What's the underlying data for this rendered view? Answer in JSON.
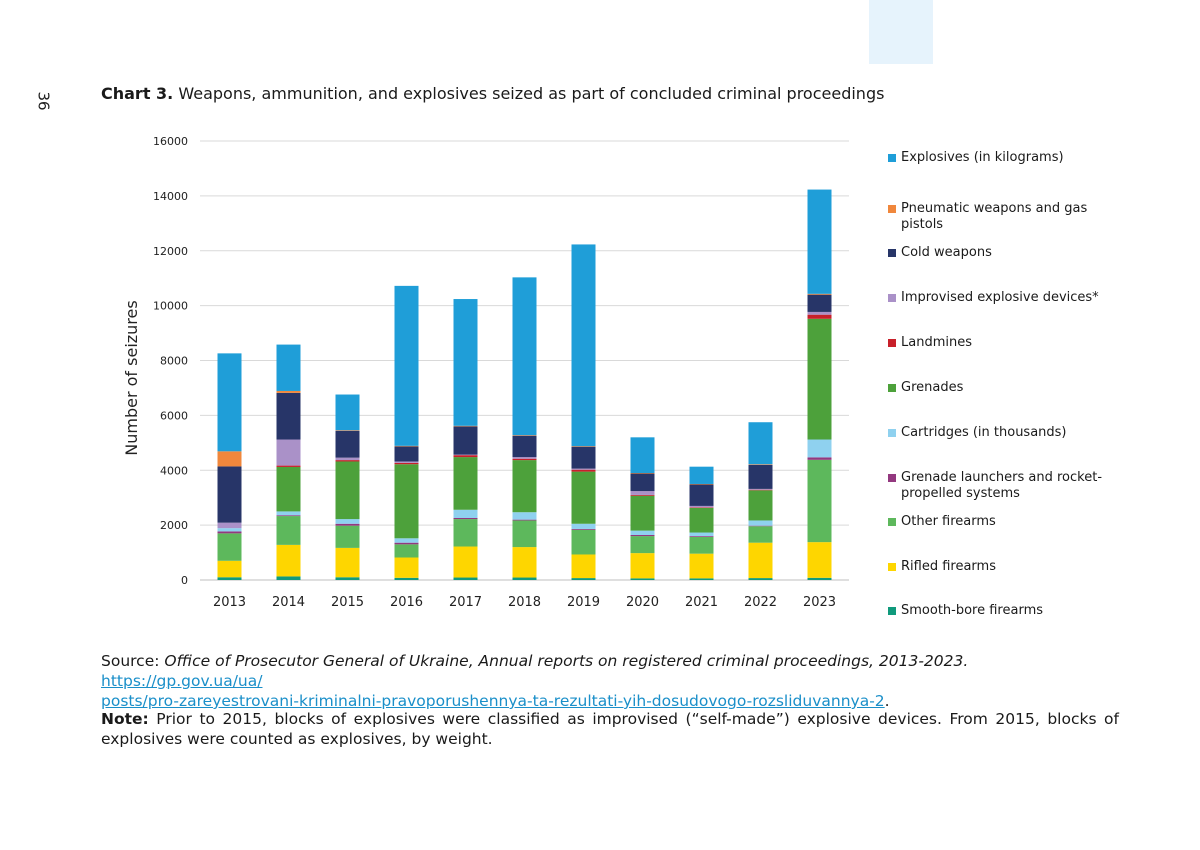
{
  "page": {
    "page_number": "36",
    "title_prefix": "Chart 3.",
    "title_text": "Weapons, ammunition, and explosives seized as part of concluded criminal proceedings",
    "source_label": "Source:",
    "source_italic": "Office of Prosecutor General of Ukraine, Annual reports on registered criminal proceedings, 2013-2023.",
    "source_link": "https://gp.gov.ua/ua/posts/pro-zareyestrovani-kriminalni-pravoporushennya-ta-rezultati-yih-dosudovogo-rozsliduvannya-2",
    "source_link_line1": "https://gp.gov.ua/ua/",
    "source_link_line2": "posts/pro-zareyestrovani-kriminalni-pravoporushennya-ta-rezultati-yih-dosudovogo-rozsliduvannya-2",
    "source_end": ".",
    "note_label": "Note:",
    "note_text": "Prior to 2015, blocks of explosives were classified as improvised (“self-made”) explosive devices. From 2015, blocks of explosives were counted as explosives, by weight."
  },
  "chart_data": {
    "type": "bar",
    "stacked": true,
    "title": "Chart 3. Weapons, ammunition, and explosives seized as part of concluded criminal proceedings",
    "xlabel": "",
    "ylabel": "Number of seizures",
    "ylim": [
      0,
      16000
    ],
    "yticks": [
      0,
      2000,
      4000,
      6000,
      8000,
      10000,
      12000,
      14000,
      16000
    ],
    "grid": true,
    "legend_position": "right",
    "categories": [
      "2013",
      "2014",
      "2015",
      "2016",
      "2017",
      "2018",
      "2019",
      "2020",
      "2021",
      "2022",
      "2023"
    ],
    "series": [
      {
        "name": "Smooth-bore firearms",
        "color": "#109a7c",
        "values": [
          100,
          130,
          100,
          80,
          90,
          90,
          70,
          60,
          60,
          70,
          80
        ]
      },
      {
        "name": "Rifled firearms",
        "color": "#fed600",
        "values": [
          600,
          1150,
          1070,
          740,
          1130,
          1110,
          860,
          920,
          900,
          1290,
          1300
        ]
      },
      {
        "name": "Other firearms",
        "color": "#5db85c",
        "values": [
          1000,
          1050,
          810,
          480,
          1000,
          970,
          900,
          620,
          610,
          600,
          3000
        ]
      },
      {
        "name": "Grenade launchers and rocket-propelled systems",
        "color": "#93387f",
        "values": [
          70,
          30,
          70,
          60,
          40,
          30,
          30,
          40,
          30,
          20,
          90
        ]
      },
      {
        "name": "Cartridges (in thousands)",
        "color": "#8fd1ef",
        "values": [
          120,
          140,
          170,
          160,
          300,
          270,
          190,
          160,
          130,
          190,
          650
        ]
      },
      {
        "name": "Grenades",
        "color": "#4da13b",
        "values": [
          0,
          1620,
          2100,
          2700,
          1920,
          1900,
          1900,
          1270,
          900,
          1100,
          4400
        ]
      },
      {
        "name": "Landmines",
        "color": "#c8202a",
        "values": [
          0,
          50,
          50,
          50,
          70,
          50,
          70,
          30,
          20,
          20,
          150
        ]
      },
      {
        "name": "Improvised explosive devices*",
        "color": "#aa91c8",
        "values": [
          200,
          950,
          90,
          50,
          20,
          60,
          40,
          140,
          50,
          30,
          100
        ]
      },
      {
        "name": "Cold weapons",
        "color": "#273568",
        "values": [
          2050,
          1700,
          980,
          550,
          1030,
          780,
          800,
          640,
          780,
          880,
          630
        ]
      },
      {
        "name": "Pneumatic weapons and gas pistols",
        "color": "#f0873c",
        "values": [
          550,
          70,
          20,
          20,
          20,
          20,
          20,
          20,
          20,
          20,
          30
        ]
      },
      {
        "name": "Explosives (in kilograms)",
        "color": "#1f9ed8",
        "values": [
          3570,
          1690,
          1300,
          5830,
          4620,
          5750,
          7350,
          1300,
          630,
          1530,
          3800
        ]
      }
    ]
  }
}
